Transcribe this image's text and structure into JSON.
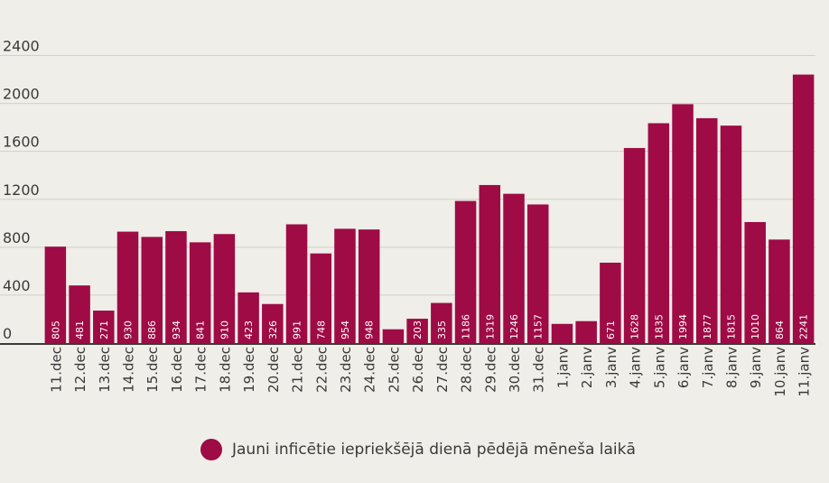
{
  "chart_data": {
    "type": "bar",
    "categories": [
      "11.dec",
      "12.dec",
      "13.dec",
      "14.dec",
      "15.dec",
      "16.dec",
      "17.dec",
      "18.dec",
      "19.dec",
      "20.dec",
      "21.dec",
      "22.dec",
      "23.dec",
      "24.dec",
      "25.dec",
      "26.dec",
      "27.dec",
      "28.dec",
      "29.dec",
      "30.dec",
      "31.dec",
      "1.janv",
      "2.janv",
      "3.janv",
      "4.janv",
      "5.janv",
      "6.janv",
      "7.janv",
      "8.janv",
      "9.janv",
      "10.janv",
      "11.janv"
    ],
    "series": [
      {
        "name": "Jauni inficētie iepriekšējā dienā pēdējā mēneša laikā",
        "values": [
          805,
          481,
          271,
          930,
          886,
          934,
          841,
          910,
          423,
          326,
          991,
          748,
          954,
          948,
          115,
          203,
          335,
          1186,
          1319,
          1246,
          1157,
          160,
          183,
          671,
          1628,
          1835,
          1994,
          1877,
          1815,
          1010,
          864,
          2241
        ],
        "labels": [
          "805",
          "481",
          "271",
          "930",
          "886",
          "934",
          "841",
          "910",
          "423",
          "326",
          "991",
          "748",
          "954",
          "948",
          "",
          "203",
          "335",
          "1186",
          "1319",
          "1246",
          "1157",
          "",
          "",
          "671",
          "1628",
          "1835",
          "1994",
          "1877",
          "1815",
          "1010",
          "864",
          "2241"
        ]
      }
    ],
    "yticks": [
      "0",
      "400",
      "800",
      "1200",
      "1600",
      "2000",
      "2400"
    ],
    "ylim": [
      0,
      2400
    ],
    "grid": true,
    "legend_position": "bottom",
    "colors": {
      "bar": "#9e0b45",
      "grid": "#d2d0c8",
      "axis": "#3a3a3a",
      "text": "#3a3a3a",
      "bar_label": "#ffffff",
      "background": "#efeee8"
    }
  }
}
